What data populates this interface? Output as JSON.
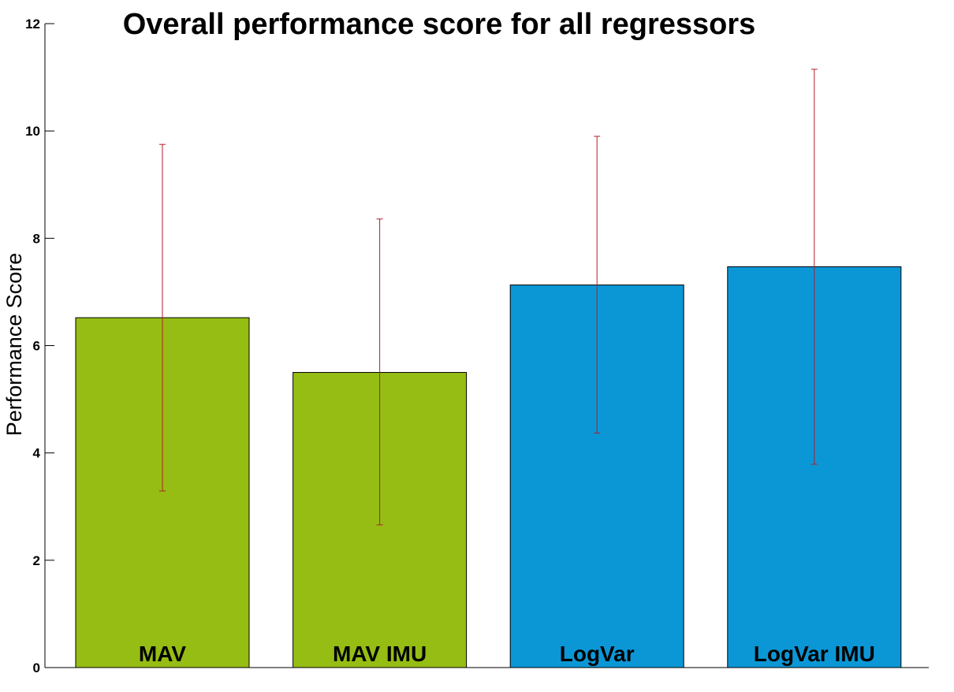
{
  "chart_data": {
    "type": "bar",
    "title": "Overall performance score for all regressors",
    "xlabel": "",
    "ylabel": "Performance Score",
    "ylim": [
      0,
      12
    ],
    "yticks": [
      0,
      2,
      4,
      6,
      8,
      10,
      12
    ],
    "grid": false,
    "legend": "none",
    "categories": [
      "MAV",
      "MAV IMU",
      "LogVar",
      "LogVar IMU"
    ],
    "values": [
      6.52,
      5.5,
      7.13,
      7.47
    ],
    "error_low": [
      3.29,
      2.66,
      4.37,
      3.79
    ],
    "error_high": [
      9.75,
      8.36,
      9.9,
      11.15
    ],
    "bar_colors": [
      "#96bd13",
      "#96bd13",
      "#0b97d6",
      "#0b97d6"
    ],
    "error_bar_color": "#b11e2c"
  }
}
